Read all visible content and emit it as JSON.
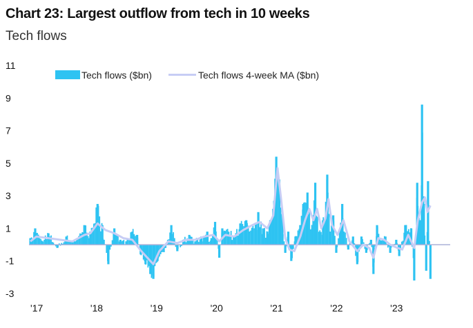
{
  "header": {
    "title": "Chart 23: Largest outflow from tech in 10 weeks",
    "subtitle": "Tech flows"
  },
  "colors": {
    "bars": "#2ec3f2",
    "ma_line": "#c7cdf5",
    "zero_line": "#aab0d8"
  },
  "chart_data": {
    "type": "bar",
    "title": "Chart 23: Largest outflow from tech in 10 weeks",
    "subtitle": "Tech flows",
    "xlabel": "",
    "ylabel": "",
    "ylim": [
      -3,
      11
    ],
    "yticks": [
      11,
      9,
      7,
      5,
      3,
      1,
      -1,
      -3
    ],
    "xlim": [
      2017.0,
      2024.0
    ],
    "xticks": [
      {
        "value": 2017,
        "label": "'17"
      },
      {
        "value": 2018,
        "label": "'18"
      },
      {
        "value": 2019,
        "label": "'19"
      },
      {
        "value": 2020,
        "label": "'20"
      },
      {
        "value": 2021,
        "label": "'21"
      },
      {
        "value": 2022,
        "label": "'22"
      },
      {
        "value": 2023,
        "label": "'23"
      }
    ],
    "legend": {
      "placement": "top"
    },
    "grid": false,
    "series": [
      {
        "name": "Tech flows ($bn)",
        "type": "bar",
        "anchors": [
          [
            2017.0,
            0.4
          ],
          [
            2017.08,
            1.0
          ],
          [
            2017.2,
            0.2
          ],
          [
            2017.3,
            0.7
          ],
          [
            2017.45,
            -0.2
          ],
          [
            2017.6,
            0.5
          ],
          [
            2017.75,
            0.2
          ],
          [
            2017.9,
            1.2
          ],
          [
            2018.0,
            0.8
          ],
          [
            2018.12,
            2.5
          ],
          [
            2018.2,
            1.2
          ],
          [
            2018.3,
            -1.2
          ],
          [
            2018.4,
            1.0
          ],
          [
            2018.5,
            0.3
          ],
          [
            2018.6,
            0.2
          ],
          [
            2018.7,
            0.8
          ],
          [
            2018.78,
            0.6
          ],
          [
            2018.84,
            -0.6
          ],
          [
            2018.92,
            -1.2
          ],
          [
            2019.0,
            -1.8
          ],
          [
            2019.05,
            -2.1
          ],
          [
            2019.12,
            -1.0
          ],
          [
            2019.25,
            -0.2
          ],
          [
            2019.35,
            1.2
          ],
          [
            2019.45,
            -0.4
          ],
          [
            2019.55,
            0.3
          ],
          [
            2019.65,
            0.6
          ],
          [
            2019.75,
            0.2
          ],
          [
            2019.85,
            0.5
          ],
          [
            2019.95,
            0.8
          ],
          [
            2020.02,
            0.4
          ],
          [
            2020.08,
            1.4
          ],
          [
            2020.15,
            -0.8
          ],
          [
            2020.2,
            1.0
          ],
          [
            2020.3,
            0.8
          ],
          [
            2020.4,
            0.5
          ],
          [
            2020.5,
            1.3
          ],
          [
            2020.6,
            1.5
          ],
          [
            2020.7,
            1.0
          ],
          [
            2020.8,
            2.0
          ],
          [
            2020.88,
            1.0
          ],
          [
            2020.95,
            0.8
          ],
          [
            2021.0,
            1.5
          ],
          [
            2021.05,
            2.2
          ],
          [
            2021.1,
            5.4
          ],
          [
            2021.15,
            4.0
          ],
          [
            2021.2,
            1.5
          ],
          [
            2021.25,
            -0.5
          ],
          [
            2021.3,
            0.8
          ],
          [
            2021.35,
            -1.0
          ],
          [
            2021.42,
            0.5
          ],
          [
            2021.5,
            1.2
          ],
          [
            2021.55,
            2.5
          ],
          [
            2021.62,
            3.2
          ],
          [
            2021.7,
            1.0
          ],
          [
            2021.75,
            3.8
          ],
          [
            2021.82,
            0.8
          ],
          [
            2021.88,
            1.5
          ],
          [
            2021.95,
            4.3
          ],
          [
            2022.0,
            0.8
          ],
          [
            2022.05,
            1.8
          ],
          [
            2022.1,
            -0.5
          ],
          [
            2022.2,
            2.5
          ],
          [
            2022.3,
            -0.3
          ],
          [
            2022.38,
            0.5
          ],
          [
            2022.45,
            -1.2
          ],
          [
            2022.52,
            0.5
          ],
          [
            2022.6,
            -0.5
          ],
          [
            2022.68,
            0.3
          ],
          [
            2022.72,
            -1.8
          ],
          [
            2022.78,
            1.2
          ],
          [
            2022.85,
            0.2
          ],
          [
            2022.92,
            0.5
          ],
          [
            2023.0,
            -0.5
          ],
          [
            2023.1,
            0.3
          ],
          [
            2023.15,
            -0.7
          ],
          [
            2023.25,
            1.2
          ],
          [
            2023.35,
            1.0
          ],
          [
            2023.4,
            -2.2
          ],
          [
            2023.45,
            3.8
          ],
          [
            2023.5,
            1.5
          ],
          [
            2023.53,
            8.6
          ],
          [
            2023.56,
            2.5
          ],
          [
            2023.6,
            -1.6
          ],
          [
            2023.63,
            3.9
          ],
          [
            2023.67,
            -2.1
          ]
        ]
      },
      {
        "name": "Tech flows 4-week MA ($bn)",
        "type": "line",
        "anchors": [
          [
            2017.0,
            0.2
          ],
          [
            2017.1,
            0.5
          ],
          [
            2017.3,
            0.4
          ],
          [
            2017.5,
            0.3
          ],
          [
            2017.7,
            0.2
          ],
          [
            2017.9,
            0.6
          ],
          [
            2018.0,
            0.7
          ],
          [
            2018.12,
            1.3
          ],
          [
            2018.25,
            0.9
          ],
          [
            2018.4,
            0.7
          ],
          [
            2018.55,
            0.4
          ],
          [
            2018.7,
            0.3
          ],
          [
            2018.85,
            -0.4
          ],
          [
            2019.0,
            -1.0
          ],
          [
            2019.05,
            -1.2
          ],
          [
            2019.15,
            -0.4
          ],
          [
            2019.3,
            0.2
          ],
          [
            2019.45,
            0.1
          ],
          [
            2019.6,
            0.3
          ],
          [
            2019.75,
            0.3
          ],
          [
            2019.9,
            0.5
          ],
          [
            2020.05,
            0.6
          ],
          [
            2020.15,
            0.2
          ],
          [
            2020.25,
            0.6
          ],
          [
            2020.4,
            0.5
          ],
          [
            2020.55,
            0.9
          ],
          [
            2020.7,
            1.2
          ],
          [
            2020.82,
            1.4
          ],
          [
            2020.95,
            1.0
          ],
          [
            2021.05,
            1.8
          ],
          [
            2021.12,
            4.7
          ],
          [
            2021.18,
            2.8
          ],
          [
            2021.25,
            0.4
          ],
          [
            2021.32,
            -0.3
          ],
          [
            2021.4,
            -0.4
          ],
          [
            2021.5,
            0.5
          ],
          [
            2021.58,
            1.5
          ],
          [
            2021.65,
            2.2
          ],
          [
            2021.72,
            1.5
          ],
          [
            2021.78,
            2.2
          ],
          [
            2021.85,
            1.0
          ],
          [
            2021.92,
            1.6
          ],
          [
            2021.97,
            2.8
          ],
          [
            2022.03,
            1.2
          ],
          [
            2022.12,
            0.6
          ],
          [
            2022.22,
            1.5
          ],
          [
            2022.32,
            0.2
          ],
          [
            2022.45,
            -0.4
          ],
          [
            2022.55,
            0.0
          ],
          [
            2022.65,
            -0.2
          ],
          [
            2022.72,
            -0.8
          ],
          [
            2022.8,
            0.4
          ],
          [
            2022.9,
            0.3
          ],
          [
            2023.0,
            0.0
          ],
          [
            2023.12,
            -0.2
          ],
          [
            2023.2,
            -0.3
          ],
          [
            2023.3,
            0.6
          ],
          [
            2023.4,
            -0.2
          ],
          [
            2023.46,
            1.5
          ],
          [
            2023.53,
            2.6
          ],
          [
            2023.58,
            2.9
          ],
          [
            2023.62,
            2.0
          ],
          [
            2023.67,
            2.4
          ]
        ]
      }
    ]
  }
}
